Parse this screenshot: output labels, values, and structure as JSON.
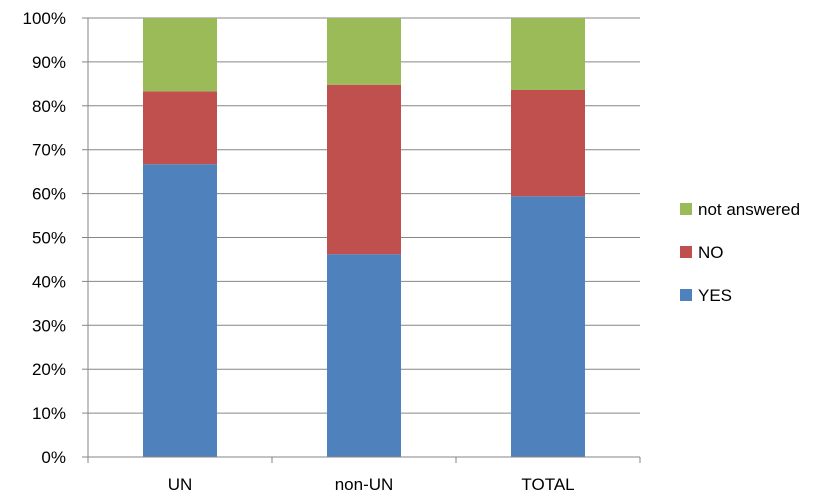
{
  "chart_data": {
    "type": "bar",
    "stacked": true,
    "percent_stacked": true,
    "categories": [
      "UN",
      "non-UN",
      "TOTAL"
    ],
    "series": [
      {
        "name": "YES",
        "values": [
          66.7,
          46.2,
          59.4
        ],
        "color": "#4f81bd"
      },
      {
        "name": "NO",
        "values": [
          16.6,
          38.6,
          24.2
        ],
        "color": "#c0504d"
      },
      {
        "name": "not answered",
        "values": [
          16.7,
          15.2,
          16.4
        ],
        "color": "#9bbb59"
      }
    ],
    "y_ticks": [
      "0%",
      "10%",
      "20%",
      "30%",
      "40%",
      "50%",
      "60%",
      "70%",
      "80%",
      "90%",
      "100%"
    ],
    "ylim": [
      0,
      100
    ],
    "grid": true,
    "legend_position": "right",
    "legend_order": [
      "not answered",
      "NO",
      "YES"
    ]
  }
}
